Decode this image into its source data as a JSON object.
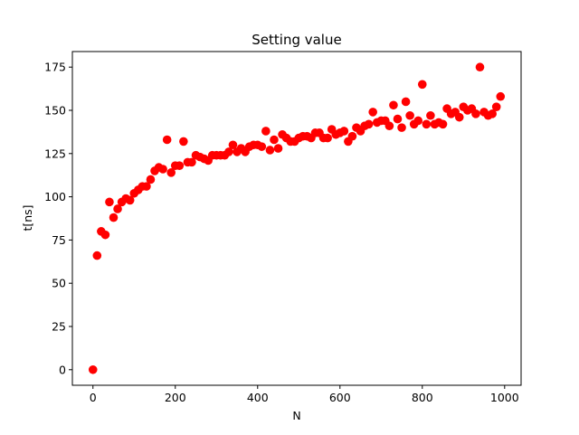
{
  "chart_data": {
    "type": "scatter",
    "title": "Setting value",
    "xlabel": "N",
    "ylabel": "t[ns]",
    "xlim": [
      -50,
      1040
    ],
    "ylim": [
      -9,
      184
    ],
    "xticks": [
      0,
      200,
      400,
      600,
      800,
      1000
    ],
    "xtick_labels": [
      "0",
      "200",
      "400",
      "600",
      "800",
      "1000"
    ],
    "yticks": [
      0,
      25,
      50,
      75,
      100,
      125,
      150,
      175
    ],
    "ytick_labels": [
      "0",
      "25",
      "50",
      "75",
      "100",
      "125",
      "150",
      "175"
    ],
    "grid": false,
    "marker_color": "#ff0000",
    "series": [
      {
        "x": [
          0,
          10,
          20,
          30,
          40,
          50,
          60,
          70,
          80,
          90,
          100,
          110,
          120,
          130,
          140,
          150,
          160,
          170,
          180,
          190,
          200,
          210,
          220,
          230,
          240,
          250,
          260,
          270,
          280,
          290,
          300,
          310,
          320,
          330,
          340,
          350,
          360,
          370,
          380,
          390,
          400,
          410,
          420,
          430,
          440,
          450,
          460,
          470,
          480,
          490,
          500,
          510,
          520,
          530,
          540,
          550,
          560,
          570,
          580,
          590,
          600,
          610,
          620,
          630,
          640,
          650,
          660,
          670,
          680,
          690,
          700,
          710,
          720,
          730,
          740,
          750,
          760,
          770,
          780,
          790,
          800,
          810,
          820,
          830,
          840,
          850,
          860,
          870,
          880,
          890,
          900,
          910,
          920,
          930,
          940,
          950,
          960,
          970,
          980,
          990
        ],
        "y": [
          0,
          66,
          80,
          78,
          97,
          88,
          93,
          97,
          99,
          98,
          102,
          104,
          106,
          106,
          110,
          115,
          117,
          116,
          133,
          114,
          118,
          118,
          132,
          120,
          120,
          124,
          123,
          122,
          121,
          124,
          124,
          124,
          124,
          126,
          130,
          126,
          128,
          126,
          129,
          130,
          130,
          129,
          138,
          127,
          133,
          128,
          136,
          134,
          132,
          132,
          134,
          135,
          135,
          134,
          137,
          137,
          134,
          134,
          139,
          136,
          137,
          138,
          132,
          135,
          140,
          138,
          141,
          142,
          149,
          143,
          144,
          144,
          141,
          153,
          145,
          140,
          155,
          147,
          142,
          144,
          165,
          142,
          147,
          142,
          143,
          142,
          151,
          148,
          149,
          146,
          152,
          150,
          151,
          148,
          175,
          149,
          147,
          148,
          152,
          158
        ]
      }
    ]
  }
}
